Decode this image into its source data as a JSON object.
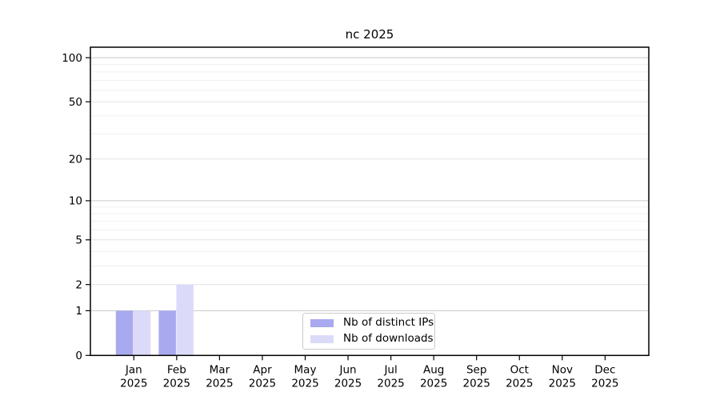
{
  "chart_data": {
    "type": "bar",
    "title": "nc 2025",
    "categories": [
      "Jan",
      "Feb",
      "Mar",
      "Apr",
      "May",
      "Jun",
      "Jul",
      "Aug",
      "Sep",
      "Oct",
      "Nov",
      "Dec"
    ],
    "category_year": "2025",
    "series": [
      {
        "name": "Nb of distinct IPs",
        "color": "#a9a9f0",
        "values": [
          1,
          1,
          0,
          0,
          0,
          0,
          0,
          0,
          0,
          0,
          0,
          0
        ]
      },
      {
        "name": "Nb of downloads",
        "color": "#dbdbf9",
        "values": [
          1,
          2,
          0,
          0,
          0,
          0,
          0,
          0,
          0,
          0,
          0,
          0
        ]
      }
    ],
    "xlabel": "",
    "ylabel": "",
    "y_scale": "log1p",
    "y_ticks": [
      0,
      1,
      2,
      5,
      10,
      20,
      50,
      100
    ],
    "y_major_gridlines": [
      1,
      10,
      100
    ],
    "y_minor_gridlines": [
      3,
      4,
      6,
      7,
      8,
      9,
      30,
      40,
      60,
      70,
      80,
      90
    ],
    "ylim": [
      0,
      118
    ],
    "grid": "horizontal",
    "legend_position": "bottom-center-inside"
  },
  "colors": {
    "bar_distinct_ips": "#a9a9f0",
    "bar_downloads": "#dbdbf9",
    "grid_major": "#c8c8c8",
    "grid_mid": "#e4e4e4",
    "grid_minor": "#f0f0f0",
    "spine": "#000000",
    "text": "#000000",
    "legend_border": "#cccccc",
    "background": "#ffffff"
  }
}
